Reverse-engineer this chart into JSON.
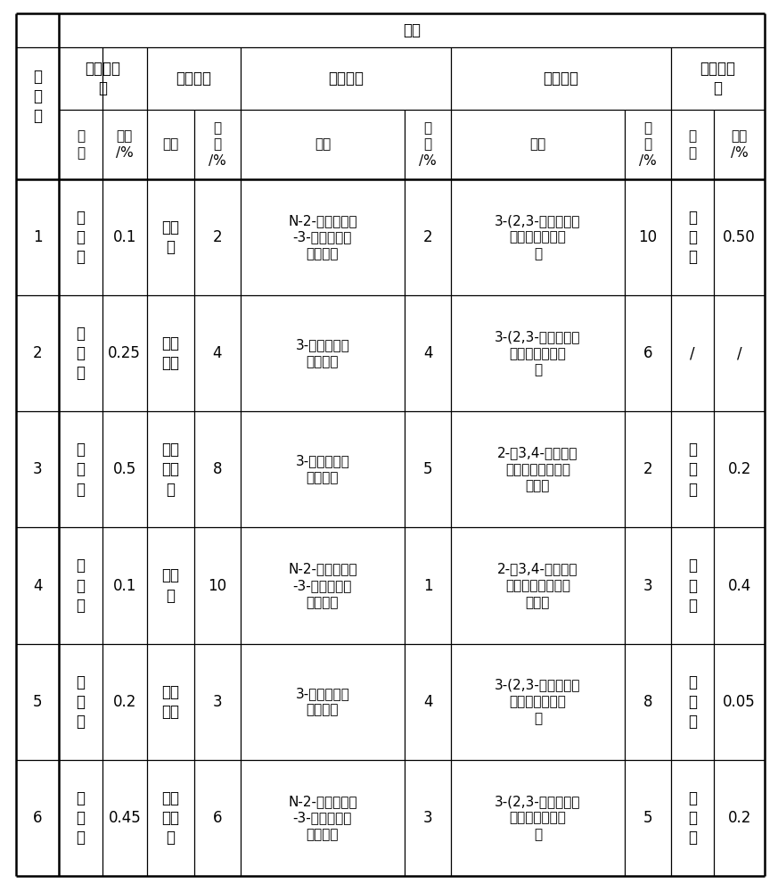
{
  "title": "配方",
  "rows": [
    {
      "example": "1",
      "cp_name": "聚\n苯\n胺",
      "cp_amount": "0.1",
      "resin_name": "聚氨\n酯",
      "resin_amount": "2",
      "amino_name": "N-2-（氨乙基）\n-3-氨丙基三甲\n氧基硅烷",
      "amino_amount": "2",
      "epoxy_name": "3-(2,3-环氧丙氧）\n丙基三甲氧基硅\n烷",
      "epoxy_amount": "10",
      "inh_name": "钛\n酸\n盐",
      "inh_amount": "0.50"
    },
    {
      "example": "2",
      "cp_name": "聚\n苯\n胺",
      "cp_amount": "0.25",
      "resin_name": "环氧\n树脂",
      "resin_amount": "4",
      "amino_name": "3-氨丙基三甲\n氧基硅烷",
      "amino_amount": "4",
      "epoxy_name": "3-(2,3-环氧丙氧）\n丙基三甲氧基硅\n烷",
      "epoxy_amount": "6",
      "inh_name": "/",
      "inh_amount": "/"
    },
    {
      "example": "3",
      "cp_name": "聚\n苯\n胺",
      "cp_amount": "0.5",
      "resin_name": "丙烯\n酸树\n脂",
      "resin_amount": "8",
      "amino_name": "3-氨丙基三甲\n氧基硅烷",
      "amino_amount": "5",
      "epoxy_name": "2-（3,4-环氧环己\n烷基）乙基三甲氧\n基硅烷",
      "epoxy_amount": "2",
      "inh_name": "钼\n酸\n盐",
      "inh_amount": "0.2"
    },
    {
      "example": "4",
      "cp_name": "聚\n吡\n咯",
      "cp_amount": "0.1",
      "resin_name": "聚氨\n酯",
      "resin_amount": "10",
      "amino_name": "N-2-（氨乙基）\n-3-氨丙基三甲\n氧基硅烷",
      "amino_amount": "1",
      "epoxy_name": "2-（3,4-环氧环己\n烷基）乙基三甲氧\n基硅烷",
      "epoxy_amount": "3",
      "inh_name": "钼\n酸\n盐",
      "inh_amount": "0.4"
    },
    {
      "example": "5",
      "cp_name": "聚\n吡\n咯",
      "cp_amount": "0.2",
      "resin_name": "环氧\n树脂",
      "resin_amount": "3",
      "amino_name": "3-氨丙基三甲\n氧基硅烷",
      "amino_amount": "4",
      "epoxy_name": "3-(2,3-环氧丙氧）\n丙基三甲氧基硅\n烷",
      "epoxy_amount": "8",
      "inh_name": "钒\n酸\n盐",
      "inh_amount": "0.05"
    },
    {
      "example": "6",
      "cp_name": "聚\n吡\n咯",
      "cp_amount": "0.45",
      "resin_name": "丙烯\n酸树\n脂",
      "resin_amount": "6",
      "amino_name": "N-2-（氨乙基）\n-3-氨丙基三甲\n氧基硅烷",
      "amino_amount": "3",
      "epoxy_name": "3-(2,3-环氧丙氧）\n丙基三甲氧基硅\n烷",
      "epoxy_amount": "5",
      "inh_name": "钛\n酸\n盐",
      "inh_amount": "0.2"
    }
  ],
  "bg_color": "#ffffff",
  "text_color": "#000000",
  "font_size": 12,
  "font_size_small": 11
}
